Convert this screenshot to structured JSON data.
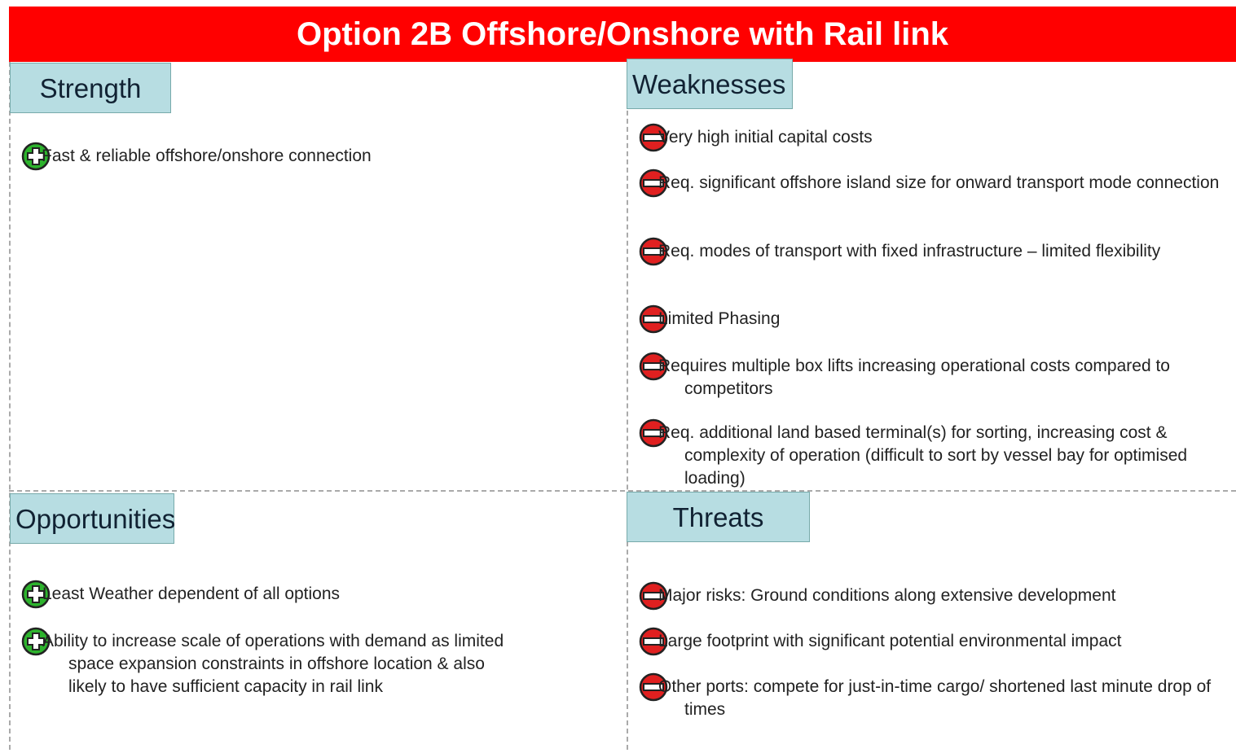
{
  "title": "Option 2B Offshore/Onshore with Rail link",
  "quadrants": [
    {
      "heading": "Strength",
      "kind": "plus",
      "items": [
        "Fast & reliable offshore/onshore connection"
      ]
    },
    {
      "heading": "Weaknesses",
      "kind": "minus",
      "items": [
        "Very high initial capital costs",
        "Req. significant offshore island size for onward transport mode connection",
        "Req. modes of transport with fixed infrastructure – limited flexibility",
        "Limited Phasing",
        "Requires multiple box lifts increasing operational costs compared to competitors",
        "Req. additional land based terminal(s) for sorting, increasing cost & complexity of operation (difficult to sort by vessel bay for optimised loading)"
      ]
    },
    {
      "heading": "Opportunities",
      "kind": "plus",
      "items": [
        "Least Weather dependent of all options",
        "Ability to increase scale of operations with demand as limited space expansion constraints in offshore location & also likely to have sufficient capacity in rail link"
      ]
    },
    {
      "heading": "Threats",
      "kind": "minus",
      "items": [
        "Major risks: Ground conditions along extensive development",
        "Large footprint with significant potential environmental impact",
        "Other ports: compete for just-in-time cargo/ shortened last minute drop of times"
      ]
    }
  ]
}
